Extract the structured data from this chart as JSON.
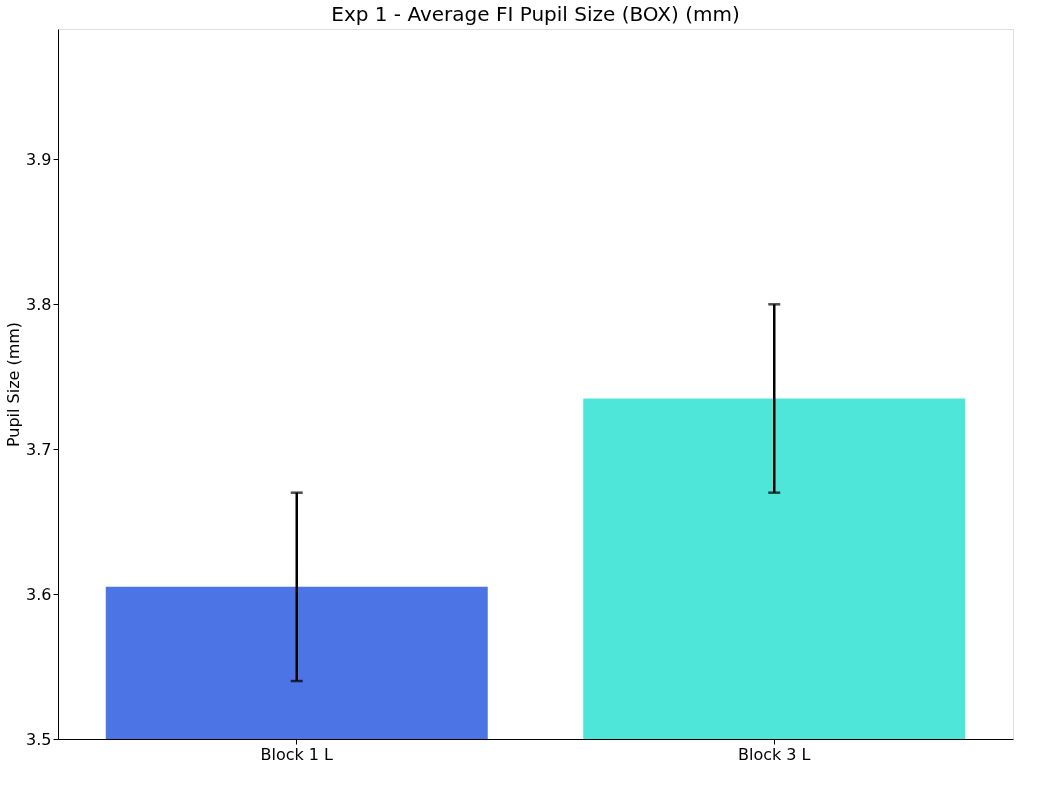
{
  "chart_data": {
    "type": "bar",
    "title": "Exp 1 - Average FI Pupil Size (BOX) (mm)",
    "ylabel": "Pupil Size (mm)",
    "categories": [
      "Block 1 L",
      "Block 3 L"
    ],
    "values": [
      3.605,
      3.735
    ],
    "colors": [
      "#4c74e5",
      "#4fe6da"
    ],
    "errors": [
      [
        3.54,
        3.67
      ],
      [
        3.67,
        3.8
      ]
    ],
    "ylim": [
      3.5,
      3.99
    ],
    "yticks": [
      3.5,
      3.6,
      3.7,
      3.8,
      3.9
    ],
    "grid": false
  }
}
